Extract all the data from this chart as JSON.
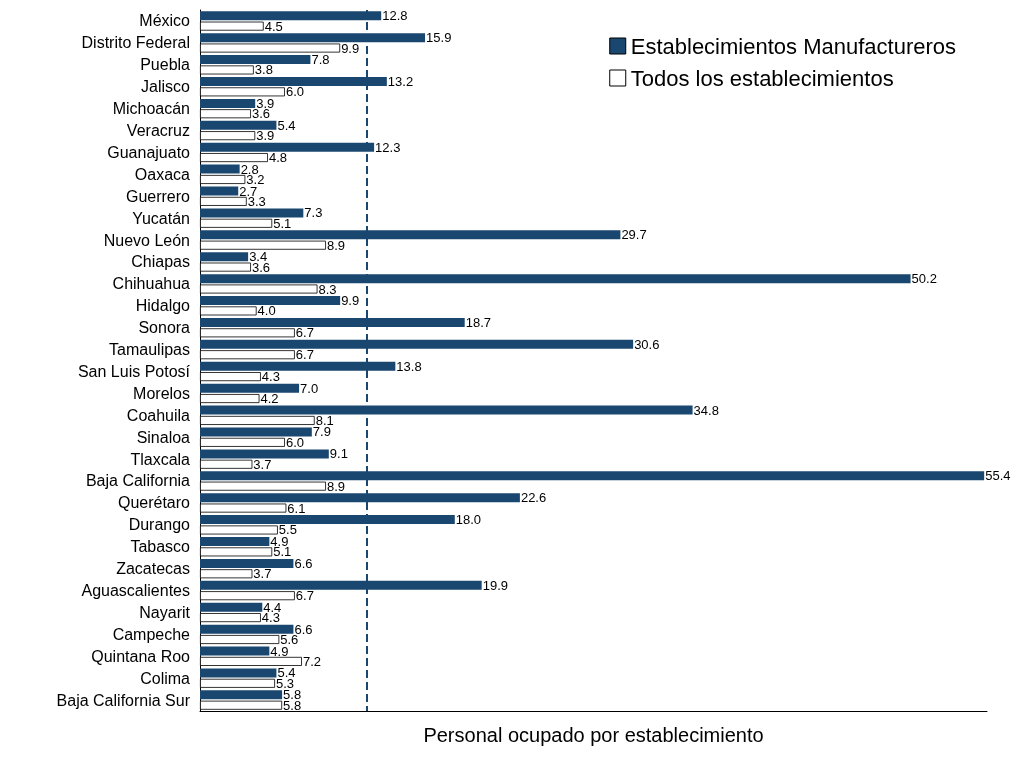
{
  "chart_data": {
    "type": "bar",
    "orientation": "horizontal",
    "xlabel": "Personal ocupado por establecimiento",
    "categories": [
      "México",
      "Distrito Federal",
      "Puebla",
      "Jalisco",
      "Michoacán",
      "Veracruz",
      "Guanajuato",
      "Oaxaca",
      "Guerrero",
      "Yucatán",
      "Nuevo León",
      "Chiapas",
      "Chihuahua",
      "Hidalgo",
      "Sonora",
      "Tamaulipas",
      "San Luis Potosí",
      "Morelos",
      "Coahuila",
      "Sinaloa",
      "Tlaxcala",
      "Baja California",
      "Querétaro",
      "Durango",
      "Tabasco",
      "Zacatecas",
      "Aguascalientes",
      "Nayarit",
      "Campeche",
      "Quintana Roo",
      "Colima",
      "Baja California Sur"
    ],
    "series": [
      {
        "name": "Establecimientos Manufactureros",
        "color": "#1a476f",
        "values": [
          12.8,
          15.9,
          7.8,
          13.2,
          3.9,
          5.4,
          12.3,
          2.8,
          2.7,
          7.3,
          29.7,
          3.4,
          50.2,
          9.9,
          18.7,
          30.6,
          13.8,
          7.0,
          34.8,
          7.9,
          9.1,
          55.4,
          22.6,
          18.0,
          4.9,
          6.6,
          19.9,
          4.4,
          6.6,
          4.9,
          5.4,
          5.8
        ],
        "value_labels": [
          "12.8",
          "15.9",
          "7.8",
          "13.2",
          "3.9",
          "5.4",
          "12.3",
          "2.8",
          "2.7",
          "7.3",
          "29.7",
          "3.4",
          "50.2",
          "9.9",
          "18.7",
          "30.6",
          "13.8",
          "7.0",
          "34.8",
          "7.9",
          "9.1",
          "55.4",
          "22.6",
          "18.0",
          "4.9",
          "6.6",
          "19.9",
          "4.4",
          "6.6",
          "4.9",
          "5.4",
          "5.8"
        ]
      },
      {
        "name": "Todos los establecimientos",
        "color": "#ffffff",
        "values": [
          4.5,
          9.9,
          3.8,
          6.0,
          3.6,
          3.9,
          4.8,
          3.2,
          3.3,
          5.1,
          8.9,
          3.6,
          8.3,
          4.0,
          6.7,
          6.7,
          4.3,
          4.2,
          8.1,
          6.0,
          3.7,
          8.9,
          6.1,
          5.5,
          5.1,
          3.7,
          6.7,
          4.3,
          5.6,
          7.2,
          5.3,
          5.8
        ],
        "value_labels": [
          "4.5",
          "9.9",
          "3.8",
          "6.0",
          "3.6",
          "3.9",
          "4.8",
          "3.2",
          "3.3",
          "5.1",
          "8.9",
          "3.6",
          "8.3",
          "4.0",
          "6.7",
          "6.7",
          "4.3",
          "4.2",
          "8.1",
          "6.0",
          "3.7",
          "8.9",
          "6.1",
          "5.5",
          "5.1",
          "3.7",
          "6.7",
          "4.3",
          "5.6",
          "7.2",
          "5.3",
          "5.8"
        ]
      }
    ],
    "xlim": [
      0,
      55.6
    ],
    "ref_lines": [
      {
        "axis": "x",
        "value": 11.8,
        "color": "#1a476f",
        "line_style": "dashed"
      }
    ],
    "tick_labels": "y",
    "grid": false,
    "legend": "top right"
  }
}
